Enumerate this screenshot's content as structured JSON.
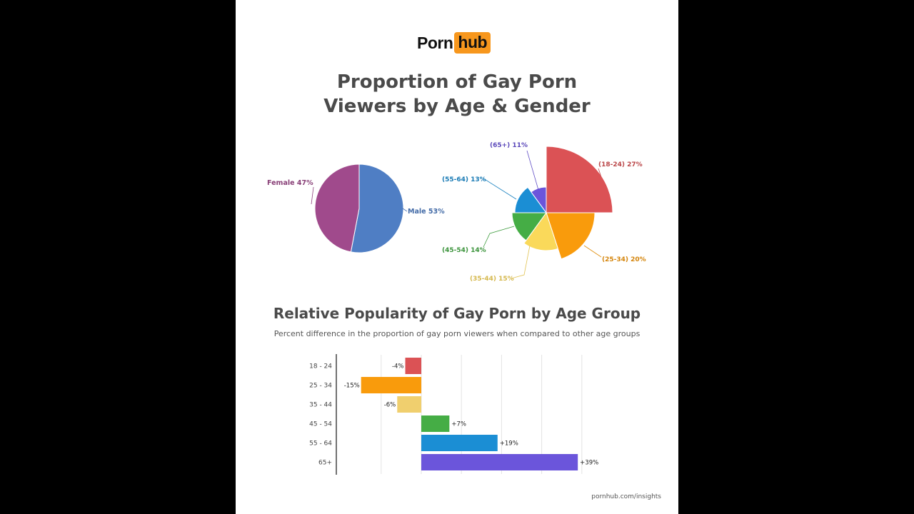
{
  "logo": {
    "part1": "Porn",
    "part2": "hub"
  },
  "title": {
    "line1": "Proportion of Gay Porn",
    "line2": "Viewers by Age & Gender"
  },
  "bar_section": {
    "title": "Relative Popularity of Gay Porn by Age Group",
    "subtitle": "Percent difference in the proportion of gay porn viewers when compared to other age groups"
  },
  "source": "pornhub.com/insights",
  "chart_data": [
    {
      "type": "pie",
      "slices": [
        {
          "label": "Male 53%",
          "name": "Male",
          "value": 53,
          "color": "#4f7ec4"
        },
        {
          "label": "Female 47%",
          "name": "Female",
          "value": 47,
          "color": "#a04a8c"
        }
      ]
    },
    {
      "type": "pie",
      "variant": "polar-area",
      "slices": [
        {
          "label": "(18-24) 27%",
          "name": "18-24",
          "value": 27,
          "color": "#db5255"
        },
        {
          "label": "(25-34) 20%",
          "name": "25-34",
          "value": 20,
          "color": "#f99b0c"
        },
        {
          "label": "(35-44) 15%",
          "name": "35-44",
          "value": 15,
          "color": "#fad95a"
        },
        {
          "label": "(45-54) 14%",
          "name": "45-54",
          "value": 14,
          "color": "#45ad45"
        },
        {
          "label": "(55-64) 13%",
          "name": "55-64",
          "value": 13,
          "color": "#1b8ed4"
        },
        {
          "label": "(65+) 11%",
          "name": "65+",
          "value": 11,
          "color": "#6b55db"
        }
      ]
    },
    {
      "type": "bar",
      "orientation": "horizontal",
      "categories": [
        "18 - 24",
        "25 - 34",
        "35 - 44",
        "45 - 54",
        "55 - 64",
        "65+"
      ],
      "values": [
        -4,
        -15,
        -6,
        7,
        19,
        39
      ],
      "value_labels": [
        "-4%",
        "-15%",
        "-6%",
        "+7%",
        "+19%",
        "+39%"
      ],
      "colors": [
        "#db5255",
        "#f99b0c",
        "#f0cf6e",
        "#45ad45",
        "#1b8ed4",
        "#6b55db"
      ],
      "xlim": [
        -21,
        43
      ],
      "grid": true
    }
  ]
}
